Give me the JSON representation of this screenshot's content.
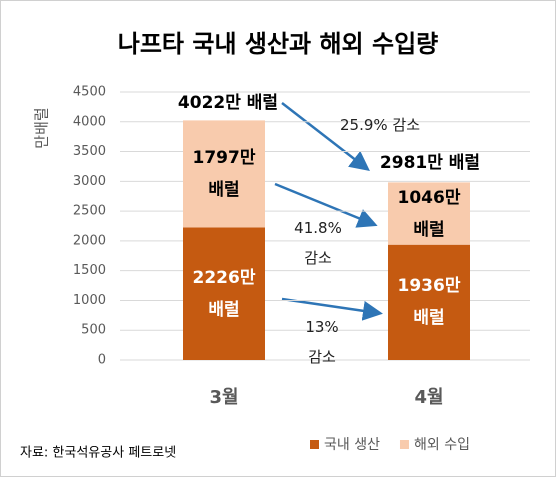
{
  "chart_data": {
    "type": "stacked_bar",
    "title": "나프타 국내 생산과 해외 수입량",
    "y_label": "만배럴",
    "categories": [
      "3월",
      "4월"
    ],
    "series": [
      {
        "name": "국내 생산",
        "color": "#c55a11",
        "values": [
          2226,
          1936
        ],
        "value_labels": [
          "2226만\n배럴",
          "1936만\n배럴"
        ],
        "label_color": "#ffffff"
      },
      {
        "name": "해외 수입",
        "color": "#f8cbad",
        "values": [
          1797,
          1046
        ],
        "value_labels": [
          "1797만\n배럴",
          "1046만\n배럴"
        ],
        "label_color": "#000000"
      }
    ],
    "totals": [
      4022,
      2981
    ],
    "total_labels": [
      "4022만 배럴",
      "2981만 배럴"
    ],
    "annotations": [
      "25.9% 감소",
      "41.8%\n감소",
      "13%\n감소"
    ],
    "ylim": [
      0,
      4500
    ],
    "yticks": [
      0,
      500,
      1000,
      1500,
      2000,
      2500,
      3000,
      3500,
      4000,
      4500
    ],
    "grid": true,
    "source": "자료: 한국석유공사 페트로넷"
  }
}
